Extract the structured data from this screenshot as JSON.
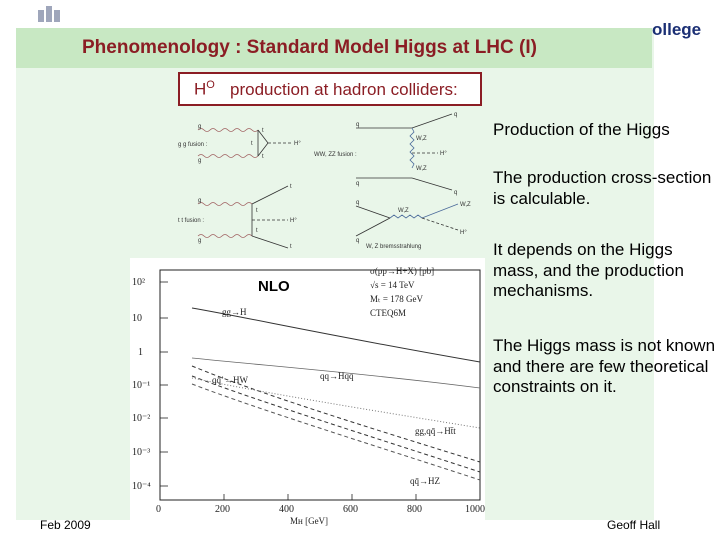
{
  "header": {
    "title": "Phenomenology : Standard Model Higgs at LHC (I)",
    "logo_text": "ollege"
  },
  "subtitle_box": {
    "symbol": "H",
    "superscript": "O",
    "text": "production at hadron colliders:"
  },
  "diagrams": {
    "gg_fusion": {
      "label": "g g fusion :",
      "g1": "g",
      "g2": "g",
      "t1": "t",
      "t2": "t",
      "t3": "t",
      "h": "H°"
    },
    "ww_zz_fusion": {
      "label": "WW, ZZ fusion :",
      "q1": "q",
      "q2": "q",
      "q3": "q",
      "q4": "q",
      "v1": "W,Z",
      "v2": "W,Z",
      "h": "H°"
    },
    "tt_fusion": {
      "label": "t t fusion :",
      "g1": "g",
      "g2": "g",
      "t1": "t",
      "t2": "t",
      "t3": "t",
      "t4": "t",
      "h": "H°"
    },
    "brems": {
      "label": "W, Z bremsstrahlung",
      "q1": "q",
      "q2": "q",
      "v1": "W,Z",
      "v2": "W,Z",
      "h": "H°"
    }
  },
  "plot": {
    "nlo": "NLO",
    "info": [
      "σ(pp→H+X) [pb]",
      "√s = 14 TeV",
      "Mₜ = 178 GeV",
      "CTEQ6M"
    ],
    "y_ticks": [
      "10²",
      "10",
      "1",
      "10⁻¹",
      "10⁻²",
      "10⁻³",
      "10⁻⁴"
    ],
    "x_ticks": [
      "0",
      "200",
      "400",
      "600",
      "800",
      "1000"
    ],
    "xlabel": "Mʜ [GeV]",
    "labels": {
      "ggH": "gg→H",
      "HW": "qq̄’→HW",
      "Hqq": "qq→Hqq",
      "Htt": "gg,qq̄→Ht̄t",
      "HZ": "qq̄→HZ"
    }
  },
  "bullets": [
    "Production of the Higgs",
    "The production cross-section is calculable.",
    "It depends on the Higgs mass, and the production mechanisms.",
    "The Higgs mass is not known and there are few theoretical constraints on it."
  ],
  "footer": {
    "left": "Feb 2009",
    "right": "Geoff Hall"
  },
  "colors": {
    "title": "#8b1d24",
    "panel": "#e9f6e9",
    "titlebar": "#c8e8c3",
    "logo": "#1b2f74"
  }
}
